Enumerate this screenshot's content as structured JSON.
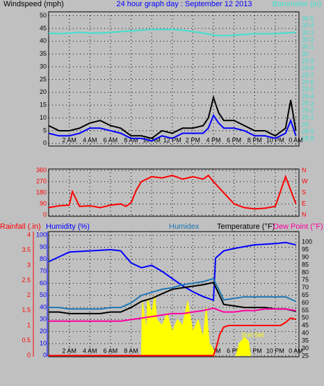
{
  "chart_data": [
    {
      "type": "line",
      "title": "24 hour graph day : September 12 2013",
      "ylabel": "Windspeed (mph)",
      "xlim": [
        0,
        24.3
      ],
      "xticks": [
        {
          "value": 2,
          "label": "2 AM"
        },
        {
          "value": 4,
          "label": "4 AM"
        },
        {
          "value": 6,
          "label": "6 AM"
        },
        {
          "value": 8,
          "label": "8 AM"
        },
        {
          "value": 10,
          "label": "10 AM"
        },
        {
          "value": 12,
          "label": "12 PM"
        },
        {
          "value": 14,
          "label": "2 PM"
        },
        {
          "value": 16,
          "label": "4 PM"
        },
        {
          "value": 18,
          "label": "6 PM"
        },
        {
          "value": 20,
          "label": "8 PM"
        },
        {
          "value": 22,
          "label": "10 PM"
        },
        {
          "value": 24,
          "label": "0 AM"
        }
      ],
      "ylim": [
        -1,
        51.5
      ],
      "yticks": [
        0,
        5,
        10,
        15,
        20,
        25,
        30,
        35,
        40,
        45,
        50
      ],
      "ycolor": "#000000",
      "y2lim": [
        28.7,
        30.6
      ],
      "y2ticks": [
        28.8,
        28.9,
        29,
        29.1,
        29.2,
        29.3,
        29.4,
        29.5,
        29.6,
        29.7,
        29.8,
        29.9,
        30,
        30.1,
        30.2,
        30.3,
        30.4,
        30.5
      ],
      "y2color": "#40e0d0",
      "grid": true,
      "x": [
        0,
        1,
        2,
        3,
        4,
        5,
        6,
        7,
        8,
        9,
        10,
        11,
        12,
        13,
        14,
        15,
        16,
        17,
        18,
        19,
        20,
        21,
        22,
        23,
        24
      ],
      "series": [
        {
          "color": "#000000",
          "x": [
            0,
            1,
            2,
            3,
            4,
            5,
            6,
            7,
            8,
            9,
            10,
            11,
            12,
            13,
            14,
            15,
            15.5,
            16,
            16.5,
            17,
            18,
            19,
            20,
            21,
            22,
            23,
            23.5,
            24
          ],
          "values": [
            7,
            5,
            5,
            6,
            8,
            9,
            7,
            6,
            3,
            3,
            2,
            5,
            4,
            6,
            6,
            7,
            10,
            18,
            12,
            9,
            9,
            7,
            5,
            5,
            3,
            6,
            17,
            5
          ]
        },
        {
          "color": "#0000ff",
          "x": [
            0,
            1,
            2,
            3,
            4,
            5,
            6,
            7,
            8,
            9,
            10,
            11,
            12,
            13,
            14,
            15,
            15.5,
            16,
            16.5,
            17,
            18,
            19,
            20,
            21,
            22,
            23,
            23.5,
            24
          ],
          "values": [
            4,
            3,
            3,
            4,
            6,
            6,
            5,
            4,
            2,
            2,
            1,
            3,
            2,
            4,
            4,
            4,
            6,
            11,
            8,
            6,
            6,
            5,
            3,
            3,
            2,
            4,
            9,
            3
          ]
        },
        {
          "name": "Barometer (in)",
          "color": "#40e0d0",
          "axis": "y2",
          "values": [
            30.3,
            30.29,
            30.3,
            30.31,
            30.3,
            30.3,
            30.31,
            30.32,
            30.33,
            30.34,
            30.35,
            30.35,
            30.35,
            30.34,
            30.32,
            30.3,
            30.27,
            30.26,
            30.27,
            30.28,
            30.29,
            30.29,
            30.29,
            30.3,
            30.31
          ]
        }
      ]
    },
    {
      "type": "line",
      "xlim": [
        0,
        24.3
      ],
      "xticks": [
        2,
        4,
        6,
        8,
        10,
        12,
        14,
        16,
        18,
        20,
        22,
        24
      ],
      "ylim": [
        -10,
        372
      ],
      "yticks": [
        0,
        90,
        180,
        270,
        360
      ],
      "ycolor": "#ff0000",
      "y2lim": [
        -10,
        372
      ],
      "y2ticks": [
        {
          "value": 0,
          "label": "N"
        },
        {
          "value": 90,
          "label": "E"
        },
        {
          "value": 180,
          "label": "S"
        },
        {
          "value": 270,
          "label": "W"
        },
        {
          "value": 360,
          "label": "N"
        }
      ],
      "y2color": "#ff0000",
      "grid": true,
      "series": [
        {
          "color": "#ff0000",
          "x": [
            0,
            1,
            2,
            2.3,
            3,
            4,
            5,
            6,
            7,
            7.5,
            8,
            8.5,
            9,
            10,
            11,
            12,
            13,
            14,
            15,
            15.5,
            16,
            17,
            18,
            19,
            20,
            21,
            22,
            23,
            24
          ],
          "values": [
            60,
            75,
            80,
            190,
            70,
            75,
            60,
            80,
            90,
            70,
            100,
            200,
            270,
            310,
            300,
            320,
            290,
            310,
            290,
            320,
            270,
            180,
            90,
            60,
            50,
            55,
            70,
            310,
            90
          ]
        }
      ]
    },
    {
      "type": "line",
      "xlim": [
        0,
        24.3
      ],
      "xticks": [
        {
          "value": 2,
          "label": "2 AM"
        },
        {
          "value": 4,
          "label": "4 AM"
        },
        {
          "value": 6,
          "label": "6 AM"
        },
        {
          "value": 8,
          "label": "8 AM"
        },
        {
          "value": 10,
          "label": "10 AM"
        },
        {
          "value": 12,
          "label": "12 PM"
        },
        {
          "value": 14,
          "label": "2 PM"
        },
        {
          "value": 16,
          "label": "4 PM"
        },
        {
          "value": 18,
          "label": "6 PM"
        },
        {
          "value": 20,
          "label": "8 PM"
        },
        {
          "value": 22,
          "label": "10 PM"
        },
        {
          "value": 24,
          "label": "0 AM"
        }
      ],
      "ylim": [
        -1,
        103
      ],
      "yticks": [
        0,
        10,
        20,
        30,
        40,
        50,
        60,
        70,
        80,
        90,
        100
      ],
      "ycolor": "#0000ff",
      "y2lim": [
        24.5,
        107
      ],
      "y2ticks": [
        25,
        30,
        35,
        40,
        45,
        50,
        55,
        60,
        65,
        70,
        75,
        80,
        85,
        90,
        95,
        100
      ],
      "y2color": "#000000",
      "y3lim": [
        -0.04,
        4.12
      ],
      "y3ticks": [
        0,
        0.5,
        1,
        1.5,
        2,
        2.5,
        3,
        3.5,
        4
      ],
      "y3color": "#ff0000",
      "grid": true,
      "annotations": [
        "Sun",
        "Sun Set"
      ],
      "x": [
        0,
        1,
        2,
        3,
        4,
        5,
        6,
        7,
        8,
        9,
        10,
        11,
        12,
        13,
        14,
        15,
        16,
        17,
        18,
        19,
        20,
        21,
        22,
        23,
        24
      ],
      "series": [
        {
          "kind": "area",
          "color": "#ffff00",
          "x": [
            9,
            9.1,
            9.5,
            9.6,
            10,
            10.3,
            10.5,
            11,
            11.5,
            12,
            12.5,
            13,
            13.5,
            14,
            14.5,
            15,
            15.3,
            15.6,
            16,
            16.1,
            17,
            18.2,
            18.5,
            19,
            19.4,
            19.6
          ],
          "values": [
            0,
            45,
            20,
            48,
            35,
            50,
            30,
            25,
            35,
            20,
            30,
            25,
            45,
            20,
            30,
            15,
            40,
            10,
            5,
            0,
            null,
            0,
            10,
            15,
            12,
            0
          ]
        },
        {
          "name": "Rainfall (.in)",
          "color": "#ff0000",
          "axis": "y3",
          "x": [
            0,
            16,
            16.3,
            16.6,
            17,
            17.5,
            22.5,
            23,
            23.5,
            24
          ],
          "values": [
            0,
            0,
            0.3,
            0.7,
            0.95,
            1.0,
            1.0,
            1.1,
            1.25,
            1.2
          ]
        },
        {
          "name": "Humidity (%)",
          "color": "#0000ff",
          "x": [
            0,
            1,
            2,
            4,
            6,
            7,
            8,
            9,
            10,
            11,
            12,
            13,
            14,
            15,
            16,
            16.2,
            17,
            18,
            20,
            22,
            23,
            24
          ],
          "values": [
            78,
            82,
            86,
            87,
            88,
            87,
            77,
            73,
            75,
            70,
            64,
            58,
            53,
            49,
            46,
            81,
            87,
            89,
            92,
            93,
            94,
            92
          ]
        },
        {
          "name": "Humidex",
          "color": "#1e78b4",
          "axis": "y2",
          "values": [
            57,
            57,
            56,
            56,
            56,
            56,
            57,
            57,
            60,
            65,
            67,
            69,
            70,
            72,
            73,
            74,
            76,
            62,
            63,
            64,
            64,
            64,
            64,
            64,
            61
          ]
        },
        {
          "name": "Temperature (°F)",
          "color": "#000000",
          "axis": "y2",
          "values": [
            54,
            54,
            53,
            53,
            53,
            53,
            54,
            54,
            57,
            61,
            63,
            66,
            69,
            70,
            71,
            72,
            73.5,
            59,
            58,
            57,
            57,
            57,
            56,
            56,
            54.5
          ]
        },
        {
          "name": "Dew Point (°F)",
          "color": "#ff00a0",
          "axis": "y2",
          "values": [
            48,
            48,
            48,
            48,
            48,
            48,
            48,
            48,
            49,
            50,
            51,
            52,
            53,
            53,
            54,
            55,
            56.5,
            54,
            54,
            55,
            55,
            56,
            56,
            56,
            55
          ]
        }
      ]
    }
  ]
}
